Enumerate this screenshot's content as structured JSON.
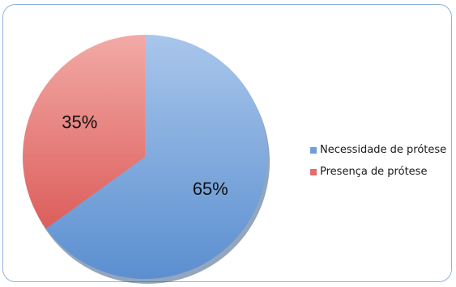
{
  "chart_data": {
    "type": "pie",
    "slices": [
      {
        "label": "Necessidade de prótese",
        "value": 65,
        "value_label": "65%",
        "color": "#6e9fd6"
      },
      {
        "label": "Presença de prótese",
        "value": 35,
        "value_label": "35%",
        "color": "#e36e6c"
      }
    ],
    "title": "",
    "legend_position": "right",
    "start_angle_deg": 0,
    "direction": "clockwise"
  }
}
